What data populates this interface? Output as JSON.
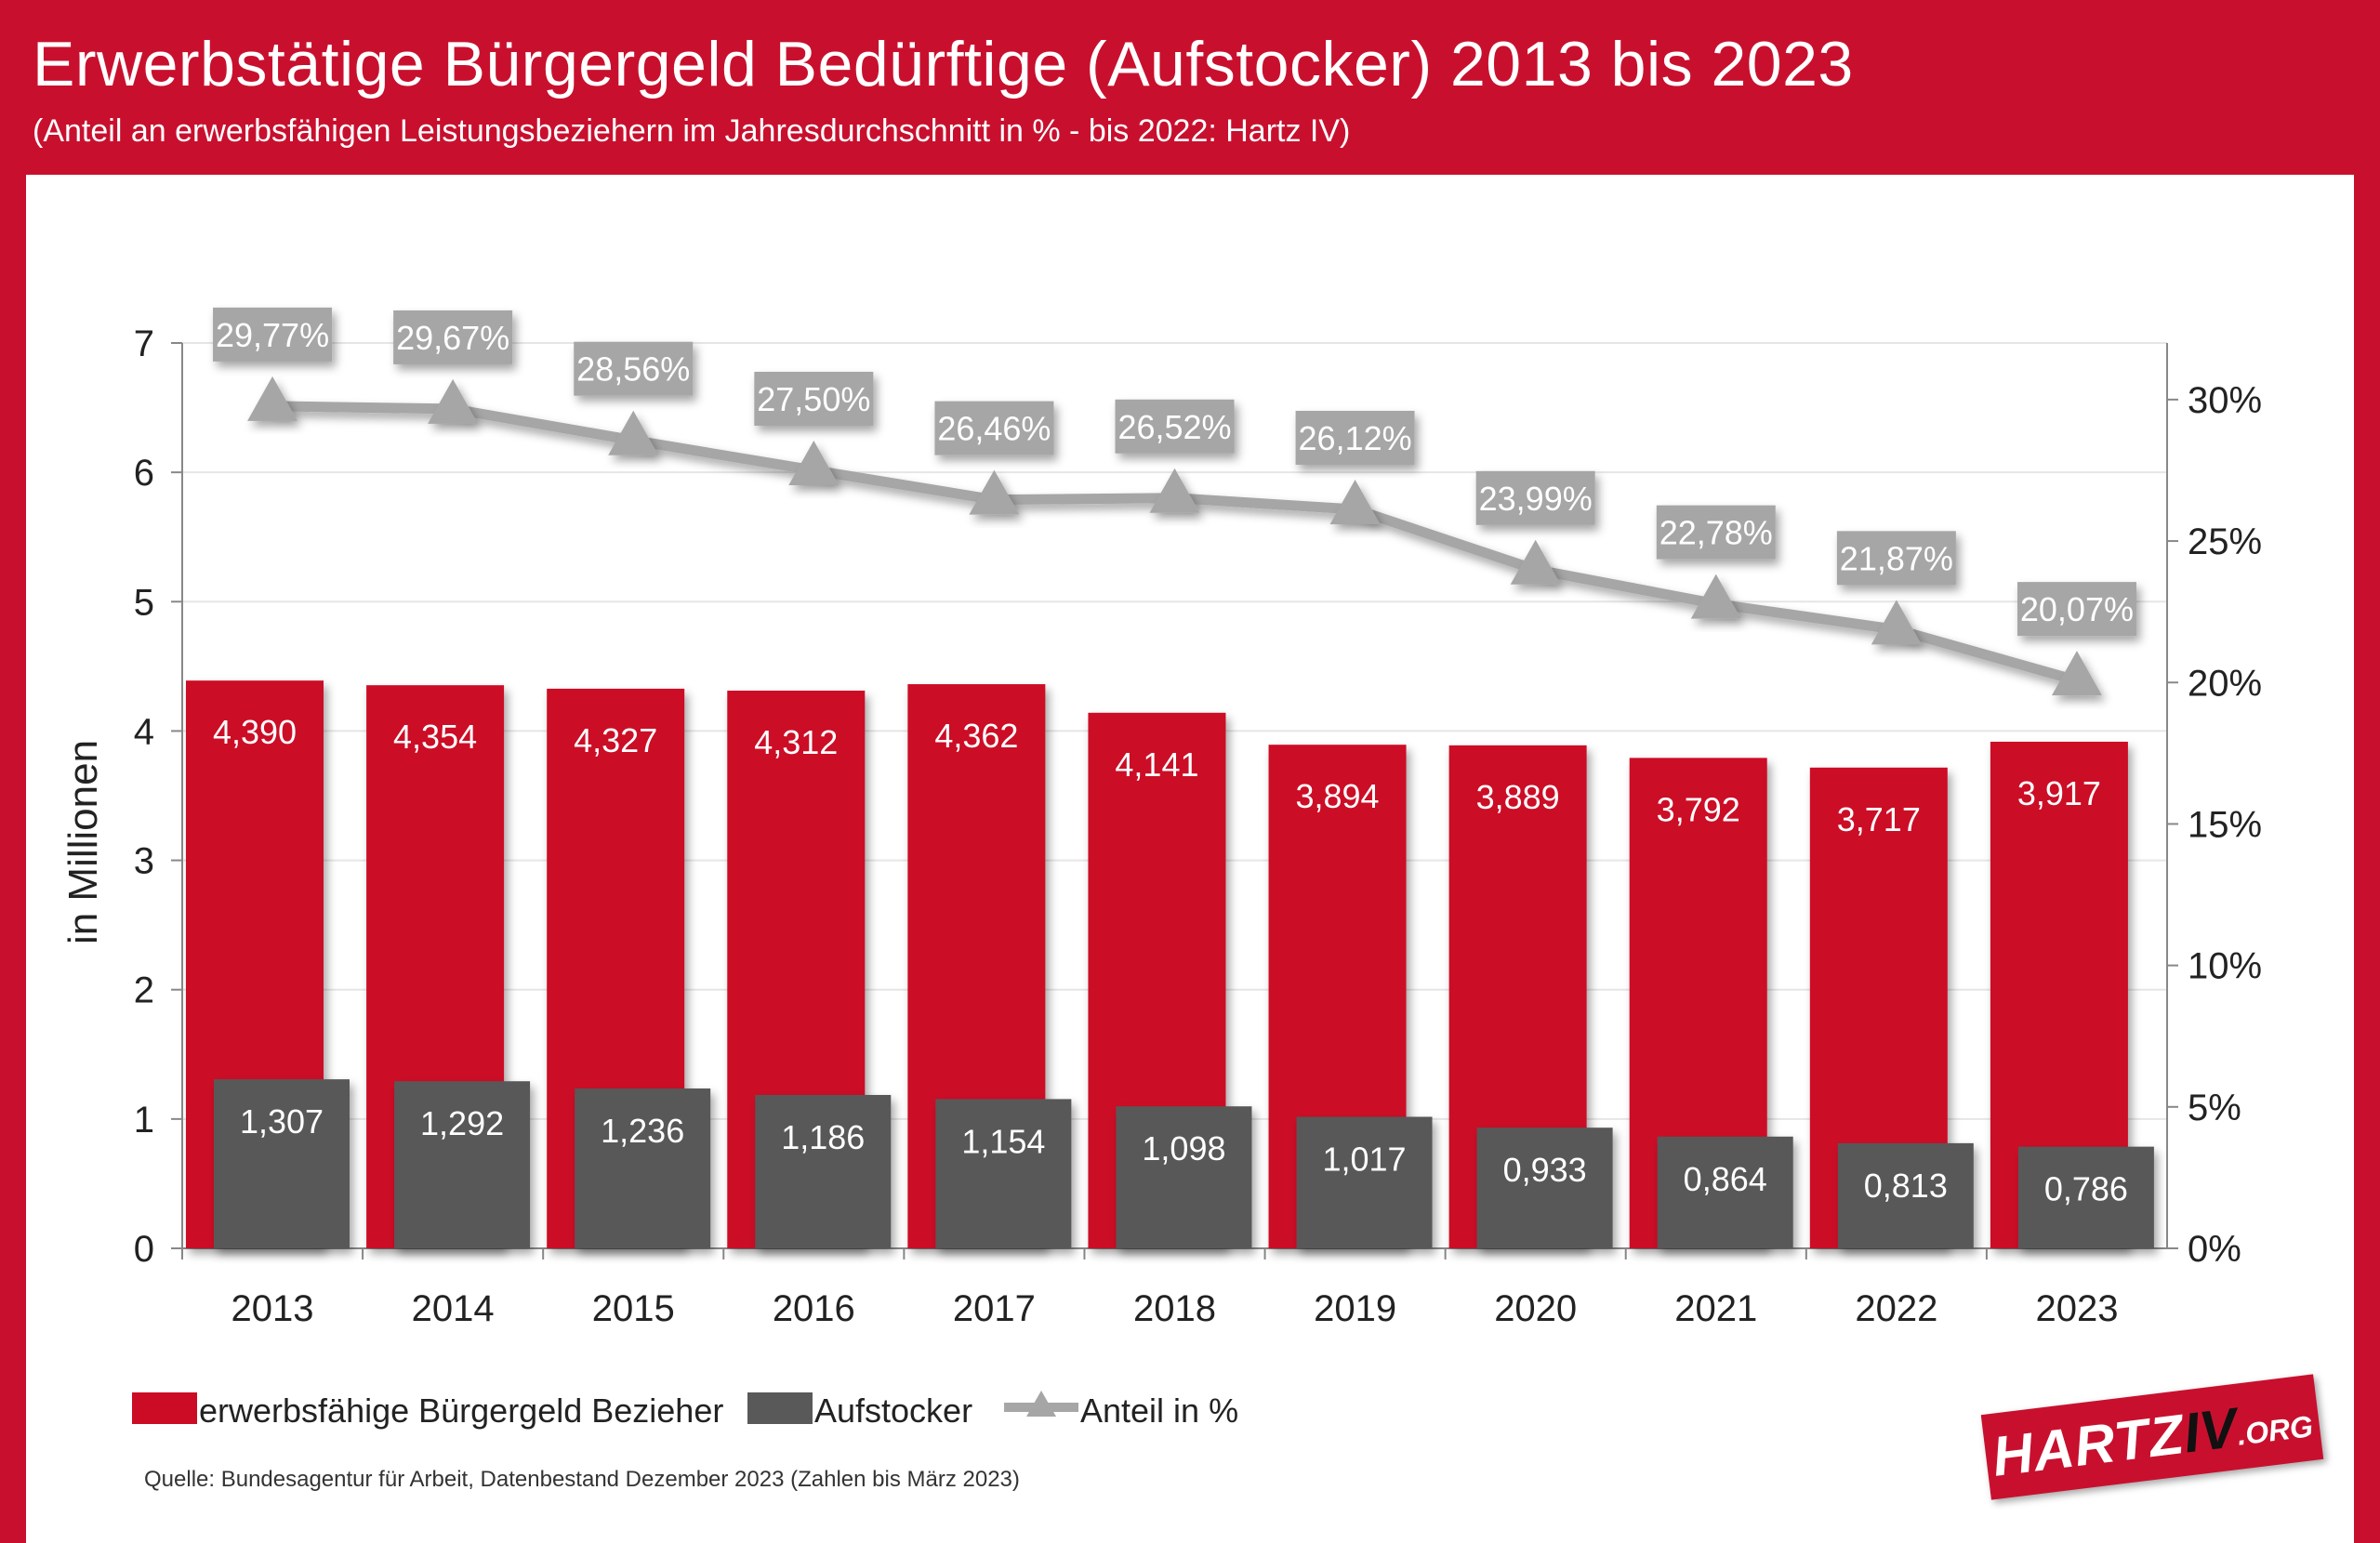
{
  "header": {
    "title": "Erwerbstätige Bürgergeld Bedürftige (Aufstocker) 2013 bis 2023",
    "subtitle": "(Anteil an erwerbsfähigen Leistungsbeziehern im Jahresdurchschnitt in % - bis 2022: Hartz IV)"
  },
  "footer": {
    "source": "Quelle: Bundesagentur für Arbeit, Datenbestand Dezember 2023 (Zahlen bis März 2023)"
  },
  "logo": {
    "part1": "HARTZ",
    "part2": "IV",
    "part3": ".ORG"
  },
  "colors": {
    "brand_red": "#c8102e",
    "bar_red": "#cc0c25",
    "bar_gray": "#595959",
    "line_gray": "#a6a6a6",
    "label_box": "#a6a6a6"
  },
  "chart_data": {
    "type": "bar",
    "categories": [
      "2013",
      "2014",
      "2015",
      "2016",
      "2017",
      "2018",
      "2019",
      "2020",
      "2021",
      "2022",
      "2023"
    ],
    "ylabel": "in Millionen",
    "ylim": [
      0,
      7
    ],
    "yticks": [
      "0",
      "1",
      "2",
      "3",
      "4",
      "5",
      "6",
      "7"
    ],
    "y2lim": [
      0,
      32
    ],
    "y2ticks": [
      "0%",
      "5%",
      "10%",
      "15%",
      "20%",
      "25%",
      "30%"
    ],
    "legend_position": "bottom-left",
    "grid": true,
    "series": [
      {
        "name": "erwerbsfähige Bürgergeld Bezieher",
        "kind": "bar",
        "values": [
          4.39,
          4.354,
          4.327,
          4.312,
          4.362,
          4.141,
          3.894,
          3.889,
          3.792,
          3.717,
          3.917
        ],
        "labels": [
          "4,390",
          "4,354",
          "4,327",
          "4,312",
          "4,362",
          "4,141",
          "3,894",
          "3,889",
          "3,792",
          "3,717",
          "3,917"
        ]
      },
      {
        "name": "Aufstocker",
        "kind": "bar",
        "values": [
          1.307,
          1.292,
          1.236,
          1.186,
          1.154,
          1.098,
          1.017,
          0.933,
          0.864,
          0.813,
          0.786
        ],
        "labels": [
          "1,307",
          "1,292",
          "1,236",
          "1,186",
          "1,154",
          "1,098",
          "1,017",
          "0,933",
          "0,864",
          "0,813",
          "0,786"
        ]
      },
      {
        "name": "Anteil in %",
        "kind": "line",
        "axis": "right",
        "values": [
          29.77,
          29.67,
          28.56,
          27.5,
          26.46,
          26.52,
          26.12,
          23.99,
          22.78,
          21.87,
          20.07
        ],
        "labels": [
          "29,77%",
          "29,67%",
          "28,56%",
          "27,50%",
          "26,46%",
          "26,52%",
          "26,12%",
          "23,99%",
          "22,78%",
          "21,87%",
          "20,07%"
        ]
      }
    ]
  }
}
